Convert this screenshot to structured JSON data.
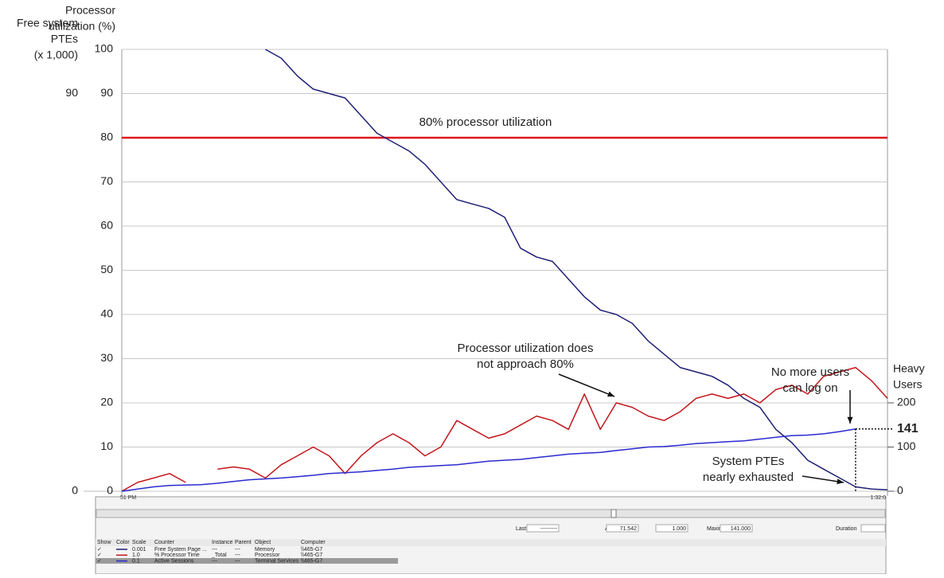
{
  "chart_data": {
    "type": "line",
    "y_title": [
      "Processor",
      "utilization (%)"
    ],
    "y_pte_title": [
      "Free system",
      "PTEs",
      "(x 1,000)"
    ],
    "y2_title": [
      "Heavy",
      "Users"
    ],
    "categories": [
      "51 PM",
      null,
      null,
      null,
      null,
      null,
      null,
      null,
      null,
      null,
      null,
      null,
      null,
      null,
      null,
      null,
      null,
      null,
      null,
      null,
      null,
      null,
      null,
      null,
      null,
      null,
      null,
      null,
      null,
      null,
      null,
      null,
      null,
      null,
      null,
      null,
      null,
      null,
      null,
      null,
      null,
      null,
      null,
      null,
      null,
      null,
      null,
      null,
      "1:32:0"
    ],
    "ylim": [
      0,
      100
    ],
    "yticks": [
      0,
      10,
      20,
      30,
      40,
      50,
      60,
      70,
      80,
      90,
      100
    ],
    "y_pte_ticks": [
      0,
      90
    ],
    "y2lim": [
      0,
      1000
    ],
    "y2ticks": [
      0,
      100,
      200
    ],
    "grid": true,
    "series": [
      {
        "name": "Free System Page ...",
        "color": "#1f1f75",
        "values": [
          null,
          null,
          null,
          null,
          null,
          null,
          null,
          null,
          null,
          100,
          98,
          94,
          91,
          90,
          89,
          85,
          81,
          79,
          77,
          74,
          70,
          66,
          65,
          64,
          62,
          55,
          53,
          52,
          48,
          44,
          41,
          40,
          38,
          34,
          31,
          28,
          27,
          26,
          24,
          21,
          19,
          14,
          11,
          7,
          5,
          3,
          1,
          0.5,
          0.3
        ]
      },
      {
        "name": "% Processor Time",
        "color": "#c4161c",
        "values": [
          0,
          2,
          3,
          4,
          2,
          null,
          5,
          5.5,
          5,
          3,
          6,
          8,
          10,
          8,
          4,
          8,
          11,
          13,
          11,
          8,
          10,
          16,
          14,
          12,
          13,
          15,
          17,
          16,
          14,
          22,
          14,
          20,
          19,
          17,
          16,
          18,
          21,
          22,
          21,
          22,
          20,
          23,
          24,
          22,
          26,
          27,
          28,
          25,
          21
        ]
      },
      {
        "name": "Active Sessions",
        "color": "#2a2ad0",
        "axis": "y2",
        "values": [
          0,
          5,
          10,
          13,
          14,
          15,
          18,
          22,
          26,
          28,
          30,
          33,
          36,
          40,
          42,
          44,
          47,
          50,
          54,
          56,
          58,
          60,
          64,
          68,
          70,
          72,
          76,
          80,
          84,
          86,
          88,
          92,
          96,
          100,
          101,
          104,
          108,
          110,
          112,
          114,
          118,
          122,
          126,
          127,
          130,
          135,
          141,
          null,
          null
        ]
      }
    ],
    "reference_line": {
      "value": 80,
      "color": "#e0161c",
      "label": "80% processor utilization"
    },
    "annotations": [
      {
        "text": [
          "Processor utilization does",
          "not approach 80%"
        ]
      },
      {
        "text": [
          "No more users",
          "can log on"
        ]
      },
      {
        "text": [
          "System PTEs",
          "nearly exhausted"
        ]
      }
    ],
    "final_users": 141
  },
  "status_bar": {
    "cells": [
      "Last",
      "---------",
      "Average",
      "71.542",
      "Minimum",
      "1.000",
      "Maximum",
      "141.000",
      "Duration"
    ]
  },
  "counters": {
    "header": [
      "Show",
      "Color",
      "Scale",
      "Counter",
      "Instance",
      "Parent",
      "Object",
      "Computer"
    ],
    "rows": [
      [
        "✓",
        "0.001",
        "Free System Page ...",
        "---",
        "---",
        "Memory",
        "\\\\465-G7"
      ],
      [
        "✓",
        "1.0",
        "% Processor Time",
        "_Total",
        "---",
        "Processor",
        "\\\\465-G7"
      ],
      [
        "✓",
        "0.1",
        "Active Sessions",
        "---",
        "---",
        "Terminal Services",
        "\\\\465-G7"
      ]
    ]
  }
}
